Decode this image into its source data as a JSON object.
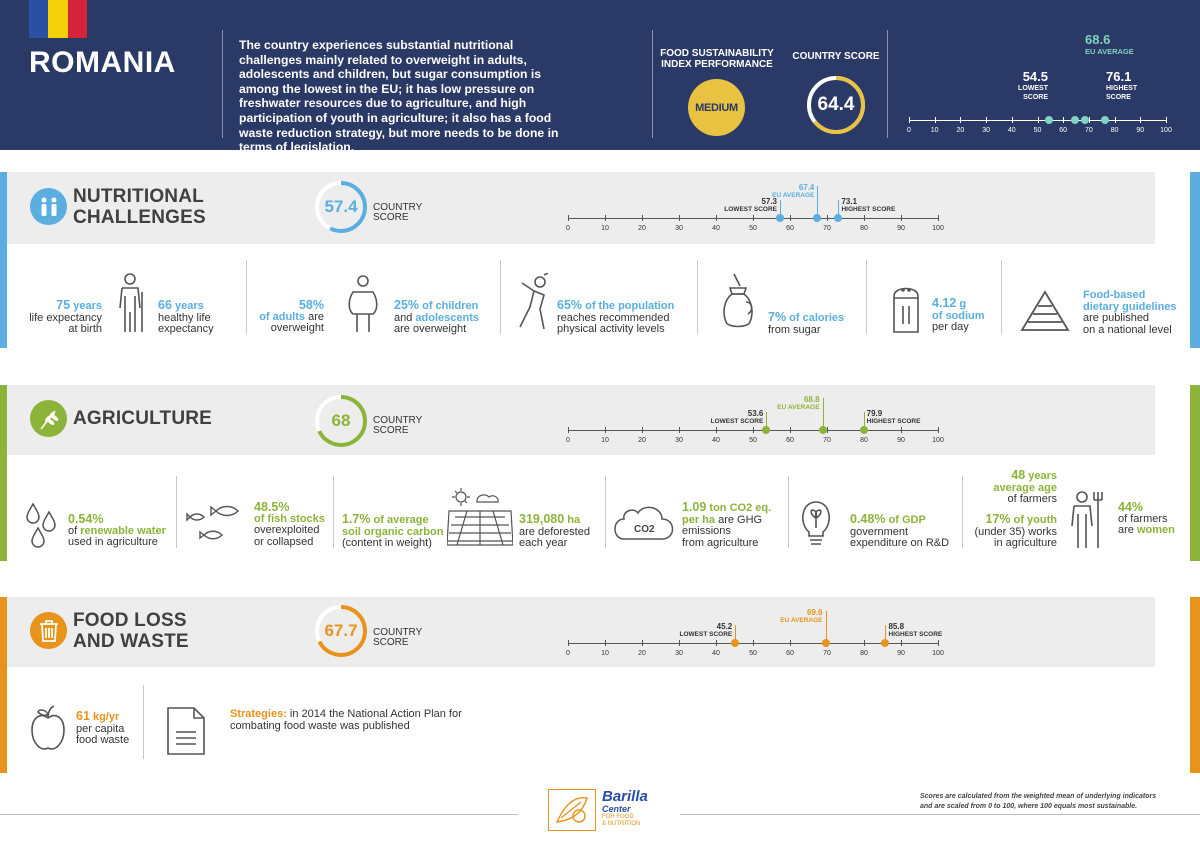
{
  "header": {
    "country": "ROMANIA",
    "intro": "The country experiences substantial nutritional challenges mainly related to overweight in adults, adolescents and children, but sugar consumption is among the lowest in the EU; it has low pressure on freshwater resources due to agriculture, and high participation of youth in agriculture; it also has a food waste reduction strategy, but more needs to be done in terms of legislation.",
    "fsi_label_1": "FOOD SUSTAINABILITY",
    "fsi_label_2": "INDEX PERFORMANCE",
    "performance": "MEDIUM",
    "country_score_label": "COUNTRY SCORE",
    "country_score": "64.4",
    "country_score_value": 64.4,
    "lowest": "54.5",
    "lowest_l1": "LOWEST",
    "lowest_l2": "SCORE",
    "eu_avg": "68.6",
    "eu_avg_label": "EU AVERAGE",
    "highest": "76.1",
    "highest_l1": "HIGHEST",
    "highest_l2": "SCORE",
    "flag_colors": [
      "#2b4fa3",
      "#f5d10a",
      "#d4243c"
    ]
  },
  "scale_ticks": [
    "0",
    "10",
    "20",
    "30",
    "40",
    "50",
    "60",
    "70",
    "80",
    "90",
    "100"
  ],
  "nutrition": {
    "title_1": "NUTRITIONAL",
    "title_2": "CHALLENGES",
    "score": "57.4",
    "score_value": 57.4,
    "cs_1": "COUNTRY",
    "cs_2": "SCORE",
    "lowest": "57.3",
    "lowest_label": "LOWEST SCORE",
    "eu_avg": "67.4",
    "eu_avg_label": "EU AVERAGE",
    "highest": "73.1",
    "highest_label": "HIGHEST SCORE",
    "s1_num": "75",
    "s1_unit": "years",
    "s1_t1": "life expectancy",
    "s1_t2": "at birth",
    "s2_num": "66",
    "s2_unit": "years",
    "s2_t1": "healthy life",
    "s2_t2": "expectancy",
    "s3_num": "58%",
    "s3_hl": "of adults",
    "s3_t1": "are",
    "s3_t2": "overweight",
    "s4_num": "25%",
    "s4_hl1": "of children",
    "s4_t1": "and",
    "s4_hl2": "adolescents",
    "s4_t2": "are overweight",
    "s5_num": "65%",
    "s5_hl": "of the population",
    "s5_t1": "reaches recommended",
    "s5_t2": "physical activity levels",
    "s6_num": "7%",
    "s6_hl": "of calories",
    "s6_t1": "from sugar",
    "s7_num": "4.12",
    "s7_unit": "g",
    "s7_hl": "of sodium",
    "s7_t1": "per day",
    "s8_hl1": "Food-based",
    "s8_hl2": "dietary guidelines",
    "s8_t1": "are published",
    "s8_t2": "on a national level"
  },
  "agriculture": {
    "title": "AGRICULTURE",
    "score": "68",
    "score_value": 68,
    "cs_1": "COUNTRY",
    "cs_2": "SCORE",
    "lowest": "53.6",
    "lowest_label": "LOWEST SCORE",
    "eu_avg": "68.8",
    "eu_avg_label": "EU AVERAGE",
    "highest": "79.9",
    "highest_label": "HIGHEST SCORE",
    "s1_num": "0.54%",
    "s1_t1": "of",
    "s1_hl": "renewable water",
    "s1_t2": "used in agriculture",
    "s2_num": "48.5%",
    "s2_hl": "of fish stocks",
    "s2_t1": "overexploited",
    "s2_t2": "or collapsed",
    "s3_num": "1.7%",
    "s3_hl1": "of average",
    "s3_hl2": "soil organic carbon",
    "s3_t1": "(content in weight)",
    "s4_num": "319,080",
    "s4_unit": "ha",
    "s4_t1": "are deforested",
    "s4_t2": "each year",
    "s5_num": "1.09",
    "s5_unit": "ton CO2 eq.",
    "s5_hl": "per ha",
    "s5_t0": "are GHG",
    "s5_t1": "emissions",
    "s5_t2": "from agriculture",
    "s5_icon": "CO2",
    "s6_num": "0.48%",
    "s6_hl": "of GDP",
    "s6_t1": "government",
    "s6_t2": "expenditure on R&D",
    "s7_num": "48",
    "s7_unit": "years",
    "s7_hl": "average age",
    "s7_t1": "of farmers",
    "s8_num": "17%",
    "s8_hl": "of youth",
    "s8_t1": "(under 35) works",
    "s8_t2": "in agriculture",
    "s9_num": "44%",
    "s9_t1": "of farmers",
    "s9_t2": "are",
    "s9_hl": "women"
  },
  "waste": {
    "title_1": "FOOD LOSS",
    "title_2": "AND WASTE",
    "score": "67.7",
    "score_value": 67.7,
    "cs_1": "COUNTRY",
    "cs_2": "SCORE",
    "lowest": "45.2",
    "lowest_label": "LOWEST SCORE",
    "eu_avg": "69.6",
    "eu_avg_label": "EU AVERAGE",
    "highest": "85.8",
    "highest_label": "HIGHEST SCORE",
    "s1_num": "61",
    "s1_unit": "kg/yr",
    "s1_t1": "per capita",
    "s1_t2": "food waste",
    "s2_hl": "Strategies:",
    "s2_t1": "in 2014 the National Action Plan for",
    "s2_t2": "combating food waste was published"
  },
  "footer": {
    "brand": "Barilla",
    "brand_2": "Center",
    "brand_3": "FOR FOOD",
    "brand_4": "& NUTRITION",
    "note_1": "Scores are calculated from the weighted mean of underlying indicators",
    "note_2": "and are scaled from 0 to 100, where 100 equals most sustainable."
  },
  "colors": {
    "navy": "#2b3966",
    "blue": "#5aaee0",
    "green": "#8db43a",
    "orange": "#e8931c",
    "teal": "#7fd3c1",
    "yellow": "#e8c240"
  }
}
